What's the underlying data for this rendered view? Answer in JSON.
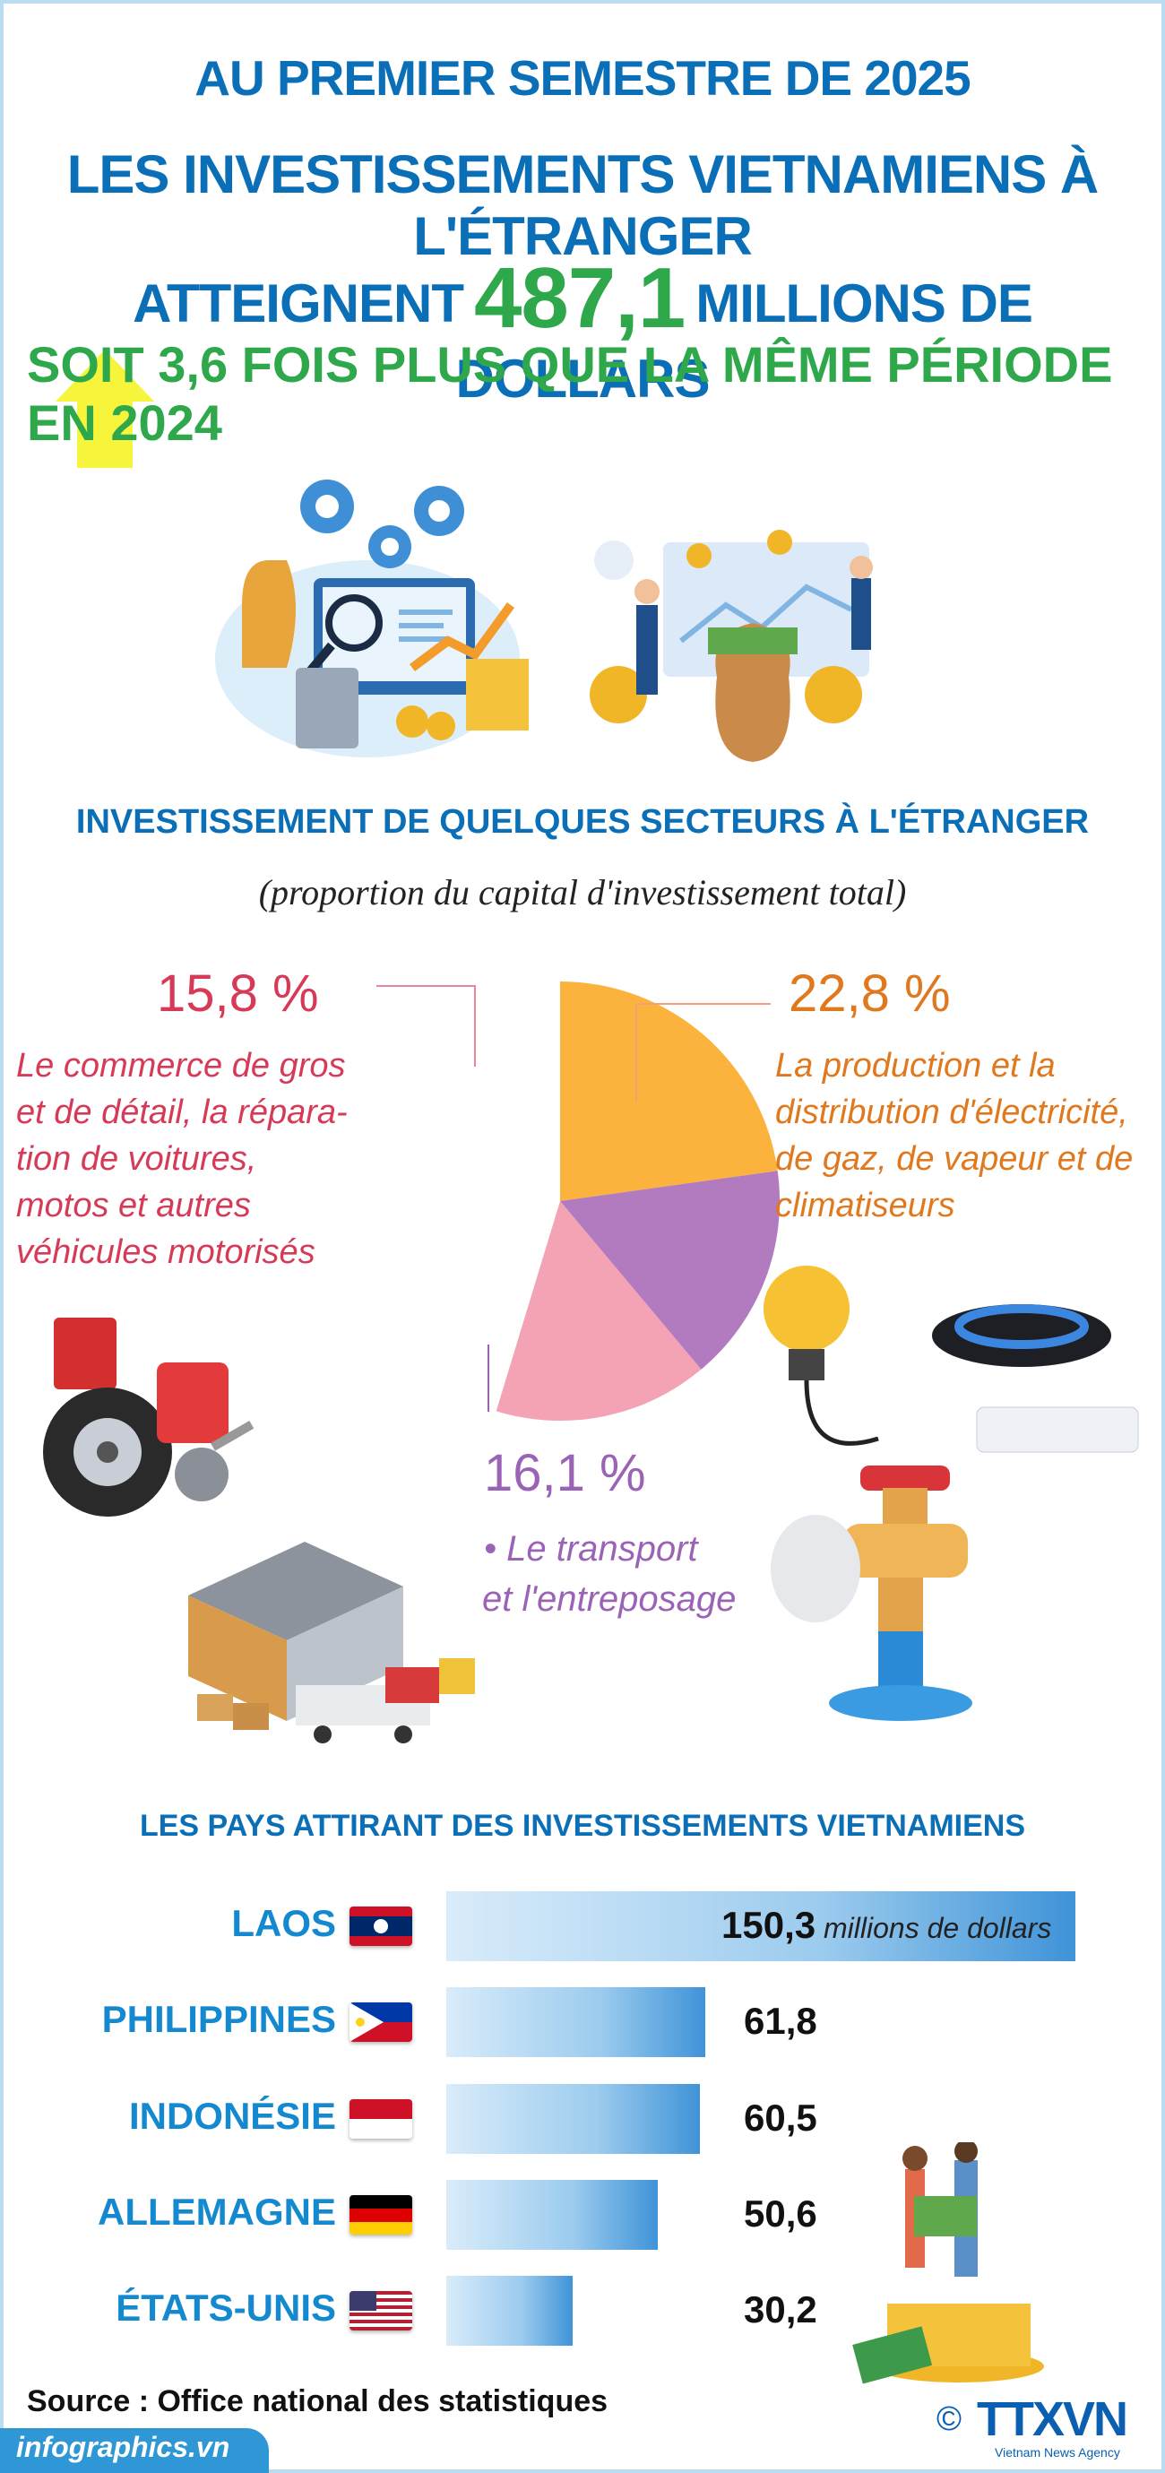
{
  "header": {
    "line1": "AU PREMIER SEMESTRE DE 2025",
    "line2": "LES INVESTISSEMENTS VIETNAMIENS À L'ÉTRANGER",
    "line3_prefix": "ATTEIGNENT",
    "line3_value": "487,1",
    "line3_suffix": "MILLIONS DE DOLLARS",
    "line4": "SOIT 3,6 FOIS PLUS QUE LA MÊME PÉRIODE EN 2024"
  },
  "sectors": {
    "title": "INVESTISSEMENT DE QUELQUES SECTEURS À L'ÉTRANGER",
    "subtitle": "(proportion du capital d'investissement total)"
  },
  "countries_title": "LES PAYS ATTIRANT DES INVESTISSEMENTS VIETNAMIENS",
  "unit_label": "millions de dollars",
  "colors": {
    "accent_blue": "#0a6fb7",
    "green": "#2ea84a",
    "pink": "#f4a3b4",
    "orange": "#fbb33d",
    "purple": "#b27bbf"
  },
  "chart_data": [
    {
      "type": "pie",
      "slices": [
        {
          "label": "22,8 %",
          "value": 22.8,
          "description": "La production et la distribution d'électricité, de gaz, de vapeur et de climatiseurs",
          "lines": [
            "La production et la",
            "distribution d'électricité,",
            "de gaz, de vapeur et de",
            "climatiseurs"
          ],
          "color": "#fbb33d"
        },
        {
          "label": "16,1 %",
          "value": 16.1,
          "description": "Le transport et l'entreposage",
          "lines": [
            "• Le transport",
            "et l'entreposage"
          ],
          "color": "#b27bbf"
        },
        {
          "label": "15,8 %",
          "value": 15.8,
          "description": "Le commerce de gros et de détail, la réparation de voitures, motos et autres véhicules motorisés",
          "lines": [
            "Le commerce de gros",
            "et de détail, la répara-",
            "tion de voitures,",
            "motos et autres",
            "véhicules motorisés"
          ],
          "color": "#f4a3b4"
        }
      ]
    },
    {
      "type": "bar",
      "orientation": "horizontal",
      "categories": [
        "LAOS",
        "PHILIPPINES",
        "INDONÉSIE",
        "ALLEMAGNE",
        "ÉTATS-UNIS"
      ],
      "values": [
        150.3,
        61.8,
        60.5,
        50.6,
        30.2
      ],
      "labels": [
        "150,3",
        "61,8",
        "60,5",
        "50,6",
        "30,2"
      ],
      "flags": [
        "laos-flag",
        "philippines-flag",
        "indonesia-flag",
        "germany-flag",
        "usa-flag"
      ]
    }
  ],
  "source": "Source : Office national des statistiques",
  "footer": {
    "site": "infographics.vn",
    "copyright": "©",
    "logo": "TTXVN",
    "agency": "Vietnam News Agency"
  }
}
